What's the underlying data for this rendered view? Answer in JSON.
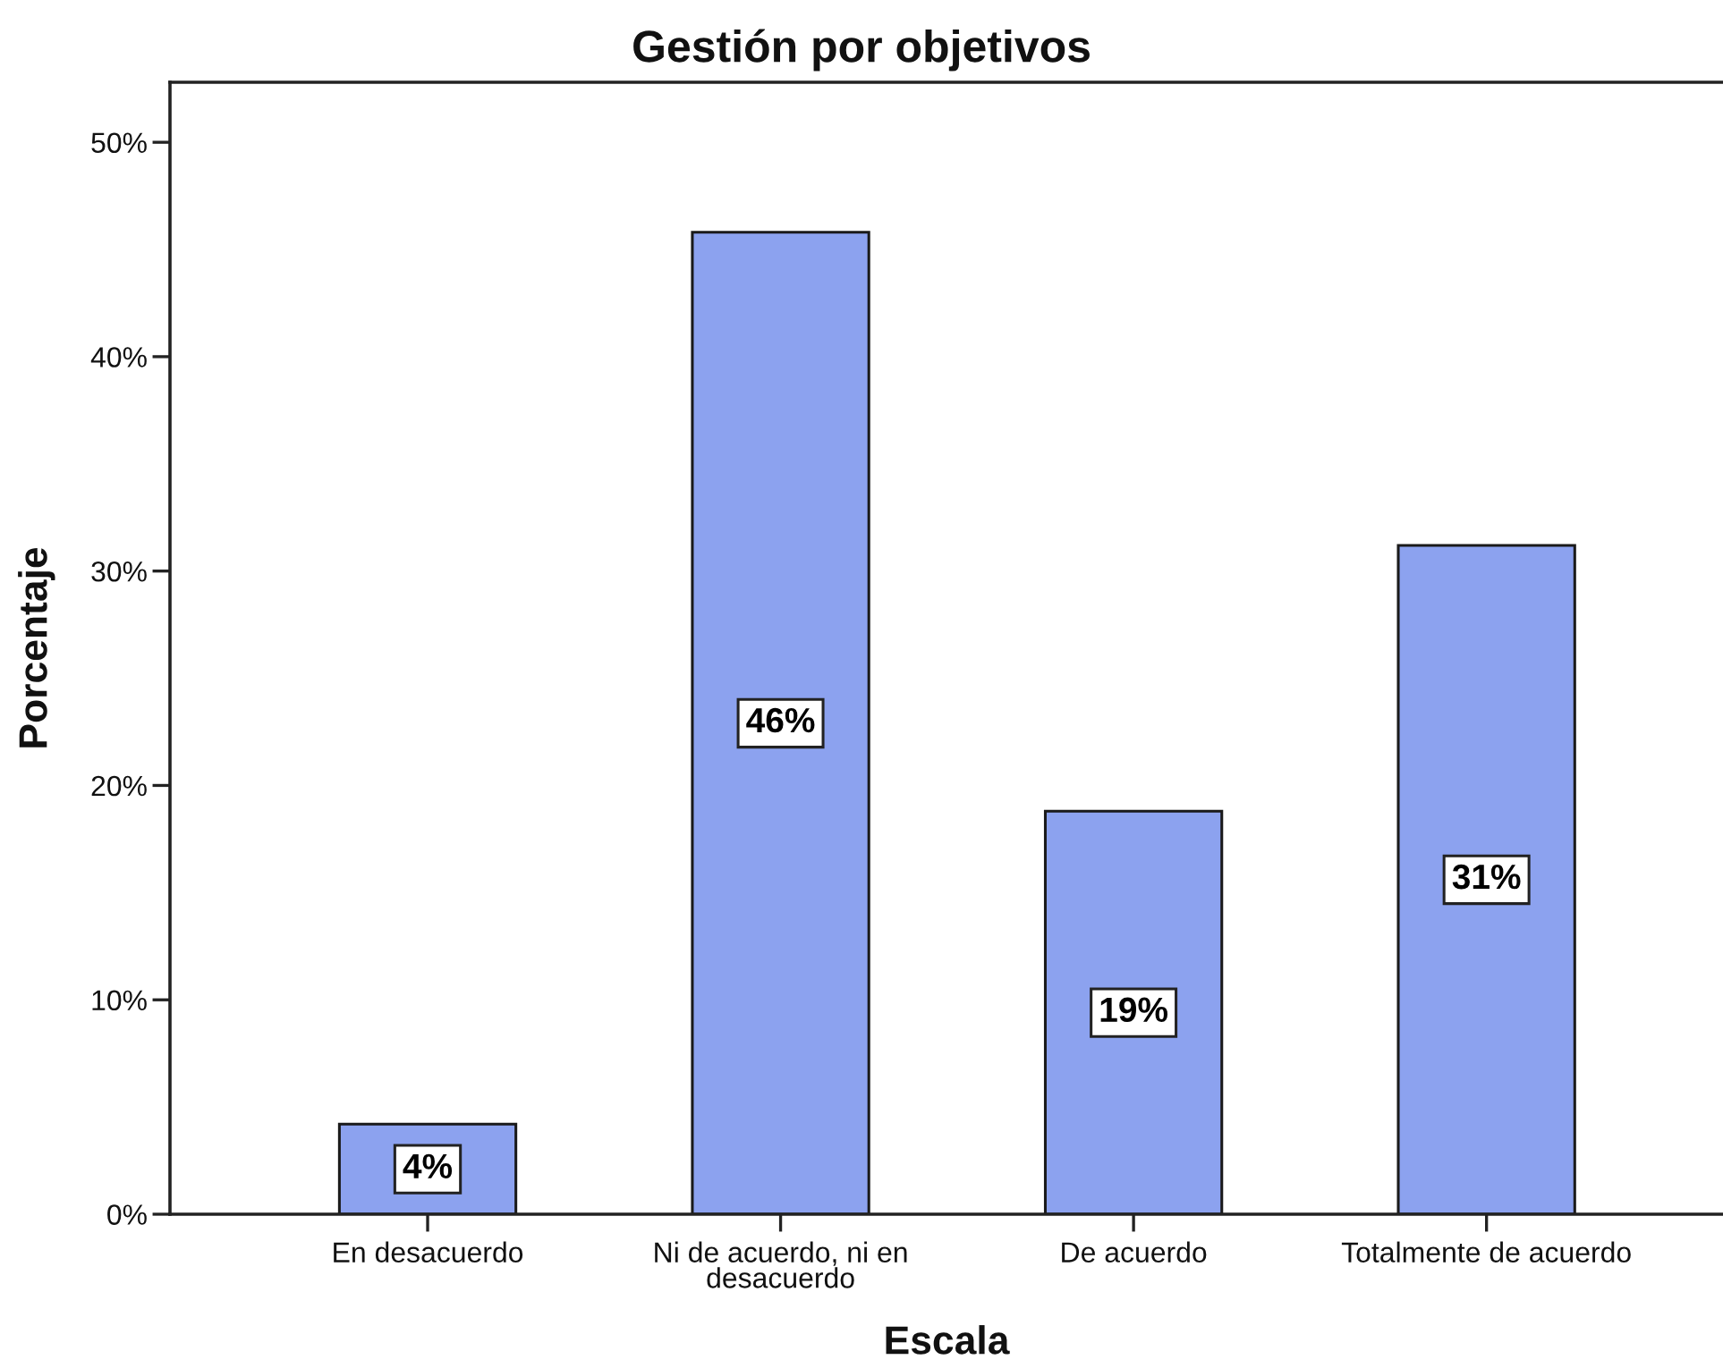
{
  "chart_data": {
    "type": "bar",
    "title": "Gestión por objetivos",
    "xlabel": "Escala",
    "ylabel": "Porcentaje",
    "categories": [
      "En desacuerdo",
      "Ni de acuerdo, ni en desacuerdo",
      "De acuerdo",
      "Totalmente de acuerdo"
    ],
    "values": [
      4.2,
      45.8,
      18.8,
      31.2
    ],
    "color": "#8ca2ef",
    "value_labels": [
      "4%",
      "46%",
      "19%",
      "31%"
    ],
    "ylim": [
      0,
      52.8
    ],
    "yticks": [
      {
        "value": 0,
        "label": "0%"
      },
      {
        "value": 10,
        "label": "10%"
      },
      {
        "value": 20,
        "label": "20%"
      },
      {
        "value": 30,
        "label": "30%"
      },
      {
        "value": 40,
        "label": "40%"
      },
      {
        "value": 50,
        "label": "50%"
      }
    ]
  }
}
